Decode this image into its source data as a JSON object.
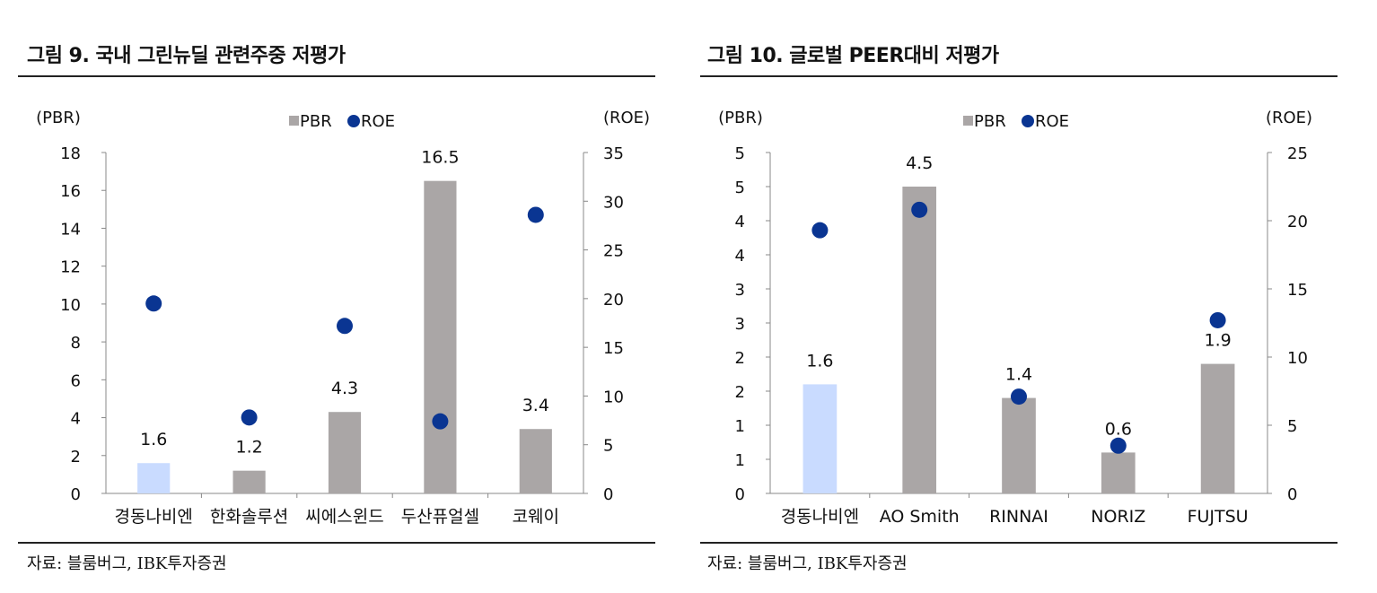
{
  "colors": {
    "bar": "#aaa6a6",
    "bar_highlight": "#c9dbff",
    "dot": "#0a3592"
  },
  "figures": [
    {
      "title": "그림 9. 국내 그린뉴딜 관련주중 저평가",
      "source": "자료: 블룸버그, IBK투자증권",
      "chart_data": {
        "type": "bar",
        "categories": [
          "경동나비엔",
          "한화솔루션",
          "씨에스윈드",
          "두산퓨얼셀",
          "코웨이"
        ],
        "series": [
          {
            "name": "PBR",
            "type": "bar",
            "axis": "left",
            "values": [
              1.6,
              1.2,
              4.3,
              16.5,
              3.4
            ]
          },
          {
            "name": "ROE",
            "type": "scatter",
            "axis": "right",
            "values": [
              19.5,
              7.8,
              17.2,
              7.4,
              28.6
            ]
          }
        ],
        "data_labels": [
          "1.6",
          "1.2",
          "4.3",
          "16.5",
          "3.4"
        ],
        "highlight_index": 0,
        "ylabel_left": "(PBR)",
        "ylabel_right": "(ROE)",
        "ylim_left": [
          0,
          18
        ],
        "ylim_right": [
          0,
          35
        ],
        "yticks_left": [
          "0",
          "2",
          "4",
          "6",
          "8",
          "10",
          "12",
          "14",
          "16",
          "18"
        ],
        "yticks_right": [
          "0",
          "5",
          "10",
          "15",
          "20",
          "25",
          "30",
          "35"
        ],
        "legend": [
          "PBR",
          "ROE"
        ],
        "legend_position": "top-center",
        "grid": false
      }
    },
    {
      "title": "그림 10. 글로벌 PEER대비 저평가",
      "source": "자료: 블룸버그, IBK투자증권",
      "chart_data": {
        "type": "bar",
        "categories": [
          "경동나비엔",
          "AO Smith",
          "RINNAI",
          "NORIZ",
          "FUJTSU"
        ],
        "series": [
          {
            "name": "PBR",
            "type": "bar",
            "axis": "left",
            "values": [
              1.6,
              4.5,
              1.4,
              0.6,
              1.9
            ]
          },
          {
            "name": "ROE",
            "type": "scatter",
            "axis": "right",
            "values": [
              19.3,
              20.8,
              7.1,
              3.5,
              12.7
            ]
          }
        ],
        "data_labels": [
          "1.6",
          "4.5",
          "1.4",
          "0.6",
          "1.9"
        ],
        "highlight_index": 0,
        "ylabel_left": "(PBR)",
        "ylabel_right": "(ROE)",
        "ylim_left": [
          0,
          5
        ],
        "ylim_right": [
          0,
          25
        ],
        "yticks_left": [
          "0",
          "1",
          "1",
          "2",
          "2",
          "3",
          "3",
          "4",
          "4",
          "5",
          "5"
        ],
        "yticks_right": [
          "0",
          "5",
          "10",
          "15",
          "20",
          "25"
        ],
        "legend": [
          "PBR",
          "ROE"
        ],
        "legend_position": "top-center",
        "grid": false
      }
    }
  ]
}
